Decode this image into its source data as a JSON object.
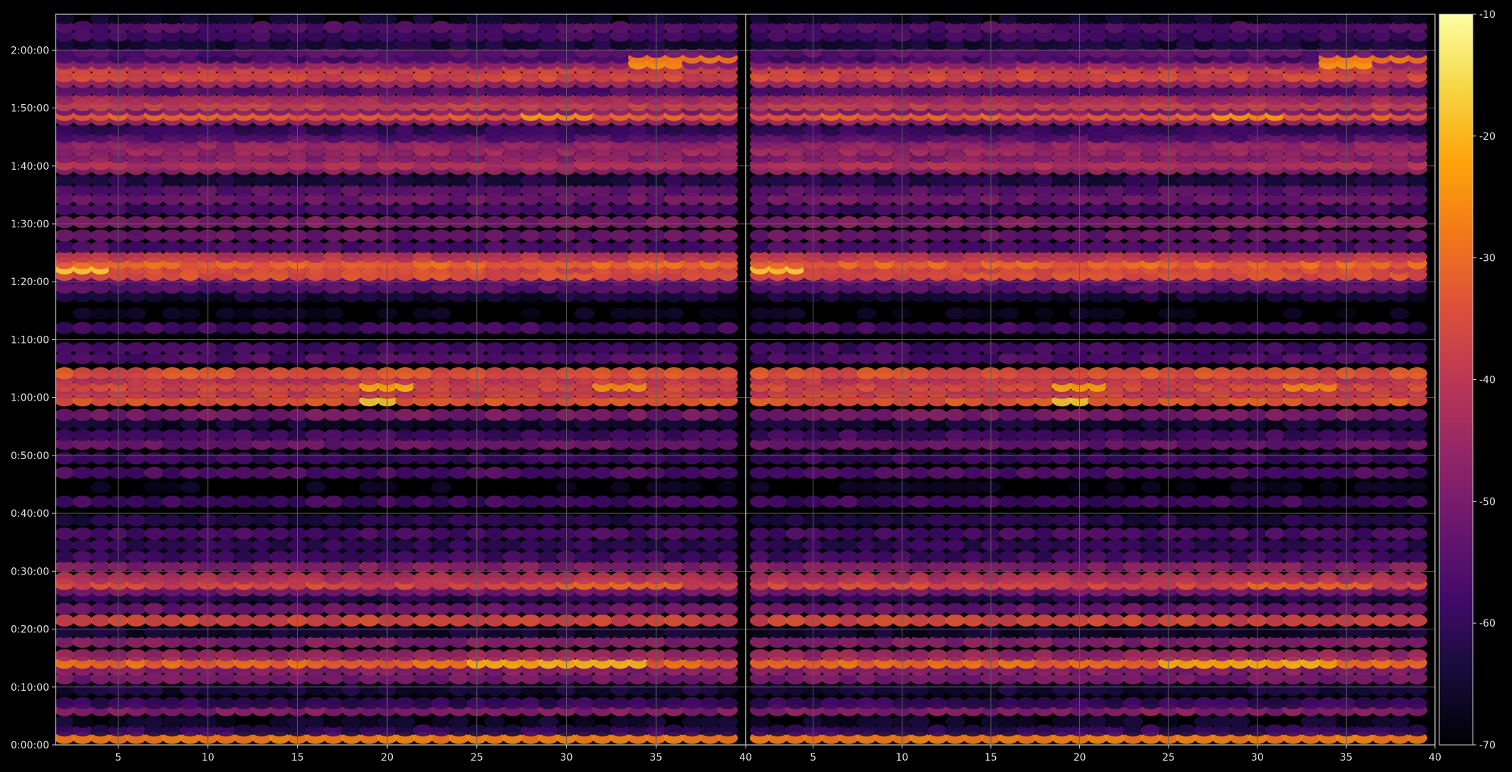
{
  "chart_data": {
    "type": "heatmap",
    "panels": [
      {
        "x_ticks": [
          "5",
          "10",
          "15",
          "20",
          "25",
          "30",
          "35",
          "40"
        ],
        "x_tick_values": [
          5,
          10,
          15,
          20,
          25,
          30,
          35,
          40
        ],
        "xlim": [
          1.5,
          40
        ]
      },
      {
        "x_ticks": [
          "5",
          "10",
          "15",
          "20",
          "25",
          "30",
          "35",
          "40"
        ],
        "x_tick_values": [
          5,
          10,
          15,
          20,
          25,
          30,
          35,
          40
        ],
        "xlim": [
          1.2,
          40
        ]
      }
    ],
    "y_ticks": [
      "0:00:00",
      "0:10:00",
      "0:20:00",
      "0:30:00",
      "0:40:00",
      "0:50:00",
      "1:00:00",
      "1:10:00",
      "1:20:00",
      "1:30:00",
      "1:40:00",
      "1:50:00",
      "2:00:00"
    ],
    "y_tick_minutes": [
      0,
      10,
      20,
      30,
      40,
      50,
      60,
      70,
      80,
      90,
      100,
      110,
      120
    ],
    "ylim_minutes": [
      0,
      126.2
    ],
    "x_channels": {
      "start": 2,
      "end": 39,
      "step": 1
    },
    "row_minutes": [
      1.2,
      2.5,
      4.0,
      6.0,
      7.2,
      9.5,
      11.5,
      13.0,
      14.2,
      15.5,
      17.8,
      19.5,
      21.5,
      23.5,
      25.5,
      26.7,
      27.8,
      28.8,
      30.8,
      32.5,
      34.5,
      36.5,
      38.8,
      42.0,
      44.5,
      47.0,
      49.5,
      52.0,
      53.5,
      55.5,
      57.0,
      59.5,
      60.8,
      62.0,
      63.2,
      64.2,
      66.8,
      68.5,
      72.0,
      74.5,
      77.5,
      79.0,
      80.3,
      81.2,
      82.3,
      83.2,
      84.3,
      86.0,
      88.0,
      90.3,
      92.5,
      94.3,
      95.8,
      97.5,
      99.5,
      100.3,
      101.5,
      102.7,
      103.8,
      105.0,
      106.2,
      108.0,
      108.8,
      109.7,
      110.5,
      111.6,
      113.0,
      114.5,
      115.5,
      116.8,
      117.7,
      118.7,
      119.7,
      121.0,
      122.5,
      124.0,
      125.5
    ],
    "row_base_dB": [
      -35,
      -60,
      -66,
      -48,
      -60,
      -64,
      -50,
      -48,
      -30,
      -45,
      -48,
      -65,
      -36,
      -52,
      -62,
      -50,
      -36,
      -42,
      -48,
      -58,
      -60,
      -57,
      -62,
      -58,
      -68,
      -56,
      -59,
      -52,
      -58,
      -65,
      -50,
      -33,
      -38,
      -36,
      -40,
      -34,
      -56,
      -58,
      -58,
      -68,
      -64,
      -54,
      -54,
      -34,
      -36,
      -31,
      -40,
      -56,
      -52,
      -49,
      -58,
      -51,
      -54,
      -62,
      -47,
      -42,
      -48,
      -45,
      -46,
      -55,
      -60,
      -45,
      -32,
      -50,
      -38,
      -44,
      -55,
      -45,
      -36,
      -38,
      -48,
      -58,
      -54,
      -64,
      -58,
      -55,
      -66
    ],
    "hotspots": [
      {
        "row_minute": 1.2,
        "x_from": 2,
        "x_to": 39,
        "dB": -27
      },
      {
        "row_minute": 14.2,
        "x_from": 25,
        "x_to": 34,
        "dB": -21
      },
      {
        "row_minute": 28.0,
        "x_from": 30,
        "x_to": 36,
        "dB": -30
      },
      {
        "row_minute": 60.0,
        "x_from": 19,
        "x_to": 20,
        "dB": -19
      },
      {
        "row_minute": 62.5,
        "x_from": 19,
        "x_to": 21,
        "dB": -22
      },
      {
        "row_minute": 61.5,
        "x_from": 32,
        "x_to": 34,
        "dB": -25
      },
      {
        "row_minute": 82.5,
        "x_from": 2,
        "x_to": 4,
        "dB": -18
      },
      {
        "row_minute": 108.8,
        "x_from": 28,
        "x_to": 31,
        "dB": -24
      },
      {
        "row_minute": 117.7,
        "x_from": 34,
        "x_to": 36,
        "dB": -25
      },
      {
        "row_minute": 118.7,
        "x_from": 34,
        "x_to": 39,
        "dB": -28
      }
    ],
    "colorbar": {
      "colormap": "inferno",
      "range": [
        -70,
        -10
      ],
      "ticks": [
        "-10",
        "-20",
        "-30",
        "-40",
        "-50",
        "-60",
        "-70"
      ],
      "tick_values": [
        -10,
        -20,
        -30,
        -40,
        -50,
        -60,
        -70
      ]
    },
    "grid": true,
    "colors": {
      "background": "#000000",
      "grid": "#5c5c5c",
      "axes": "#cfcfcf",
      "text": "#e6e6e6"
    }
  }
}
